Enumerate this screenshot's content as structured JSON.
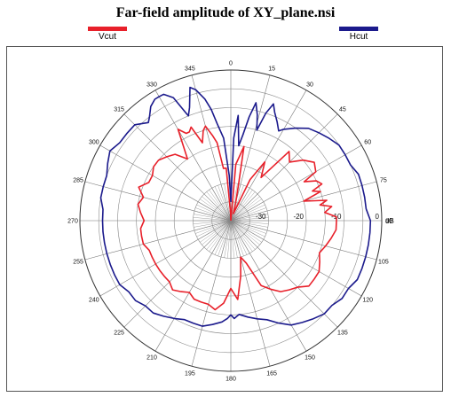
{
  "chart_data": {
    "type": "polar-line",
    "title": "Far-field amplitude of XY_plane.nsi",
    "radial_unit": "dB",
    "radial_range": [
      -40,
      0
    ],
    "radial_ticks": [
      -30,
      -20,
      -10,
      0
    ],
    "angle_ticks": [
      0,
      15,
      30,
      45,
      60,
      75,
      90,
      105,
      120,
      135,
      150,
      165,
      180,
      195,
      210,
      225,
      240,
      255,
      270,
      285,
      300,
      315,
      330,
      345
    ],
    "angle_direction": "clockwise",
    "zero_direction": "top",
    "grid": true,
    "series": [
      {
        "name": "Vcut",
        "color": "#e8202a",
        "angles": [
          0,
          5,
          10,
          12,
          15,
          20,
          25,
          30,
          35,
          40,
          45,
          50,
          55,
          60,
          62,
          65,
          68,
          70,
          72,
          75,
          78,
          80,
          82,
          85,
          88,
          90,
          95,
          100,
          105,
          110,
          115,
          120,
          125,
          130,
          135,
          140,
          145,
          150,
          155,
          160,
          165,
          170,
          175,
          180,
          185,
          190,
          195,
          200,
          205,
          210,
          215,
          220,
          225,
          230,
          235,
          240,
          245,
          250,
          255,
          260,
          265,
          270,
          275,
          280,
          285,
          290,
          295,
          300,
          305,
          310,
          315,
          320,
          325,
          330,
          333,
          335,
          337,
          340,
          343,
          345,
          348,
          350,
          352,
          355,
          358,
          360
        ],
        "values": [
          -40,
          -25,
          -20,
          -30,
          -35,
          -38,
          -28,
          -22,
          -26,
          -16,
          -18,
          -15,
          -13,
          -14,
          -18,
          -15,
          -14,
          -17,
          -15,
          -20,
          -14,
          -16,
          -13,
          -15,
          -12,
          -12,
          -12,
          -13,
          -14,
          -15,
          -14,
          -13,
          -13,
          -13,
          -15,
          -16,
          -17,
          -19,
          -21,
          -28,
          -30,
          -25,
          -19,
          -22,
          -18,
          -16,
          -17,
          -17,
          -17,
          -18,
          -17,
          -16,
          -17,
          -17,
          -17,
          -17,
          -17,
          -17,
          -16,
          -16,
          -16,
          -17,
          -16,
          -15,
          -16,
          -14,
          -16,
          -16,
          -15,
          -15,
          -16,
          -17,
          -20,
          -12,
          -14,
          -14,
          -13,
          -18,
          -15,
          -14,
          -17,
          -19,
          -26,
          -26,
          -38,
          -40
        ]
      },
      {
        "name": "Hcut",
        "color": "#1b1a8c",
        "angles": [
          0,
          2,
          4,
          6,
          8,
          10,
          12,
          14,
          16,
          18,
          20,
          22,
          25,
          28,
          30,
          35,
          40,
          45,
          50,
          55,
          60,
          65,
          70,
          75,
          80,
          85,
          90,
          95,
          100,
          105,
          110,
          115,
          120,
          125,
          130,
          135,
          140,
          145,
          150,
          155,
          160,
          165,
          170,
          175,
          178,
          180,
          182,
          185,
          190,
          195,
          200,
          205,
          210,
          215,
          220,
          225,
          230,
          235,
          240,
          245,
          250,
          255,
          260,
          265,
          270,
          275,
          280,
          285,
          290,
          295,
          300,
          305,
          310,
          315,
          320,
          322,
          325,
          328,
          330,
          332,
          335,
          338,
          340,
          343,
          345,
          348,
          350,
          352,
          355,
          358,
          360
        ],
        "values": [
          -35,
          -18,
          -12,
          -20,
          -17,
          -12,
          -8,
          -11,
          -15,
          -10,
          -7,
          -9,
          -11,
          -13,
          -12,
          -10,
          -8,
          -7,
          -6,
          -5,
          -5,
          -5,
          -4,
          -4,
          -4,
          -4,
          -3,
          -3,
          -3,
          -3,
          -3,
          -3,
          -4,
          -4,
          -5,
          -5,
          -6,
          -7,
          -8,
          -10,
          -12,
          -13,
          -14,
          -15,
          -14,
          -15,
          -14,
          -13,
          -12,
          -11,
          -11,
          -11,
          -10,
          -9,
          -8,
          -8,
          -7,
          -7,
          -6,
          -6,
          -6,
          -6,
          -6,
          -6,
          -6,
          -6,
          -5,
          -5,
          -5,
          -4,
          -3,
          -4,
          -4,
          -4,
          -6,
          -5,
          -3,
          -2,
          -2,
          -2,
          -4,
          -10,
          -8,
          -3,
          -4,
          -7,
          -10,
          -14,
          -18,
          -28,
          -35
        ]
      }
    ]
  }
}
